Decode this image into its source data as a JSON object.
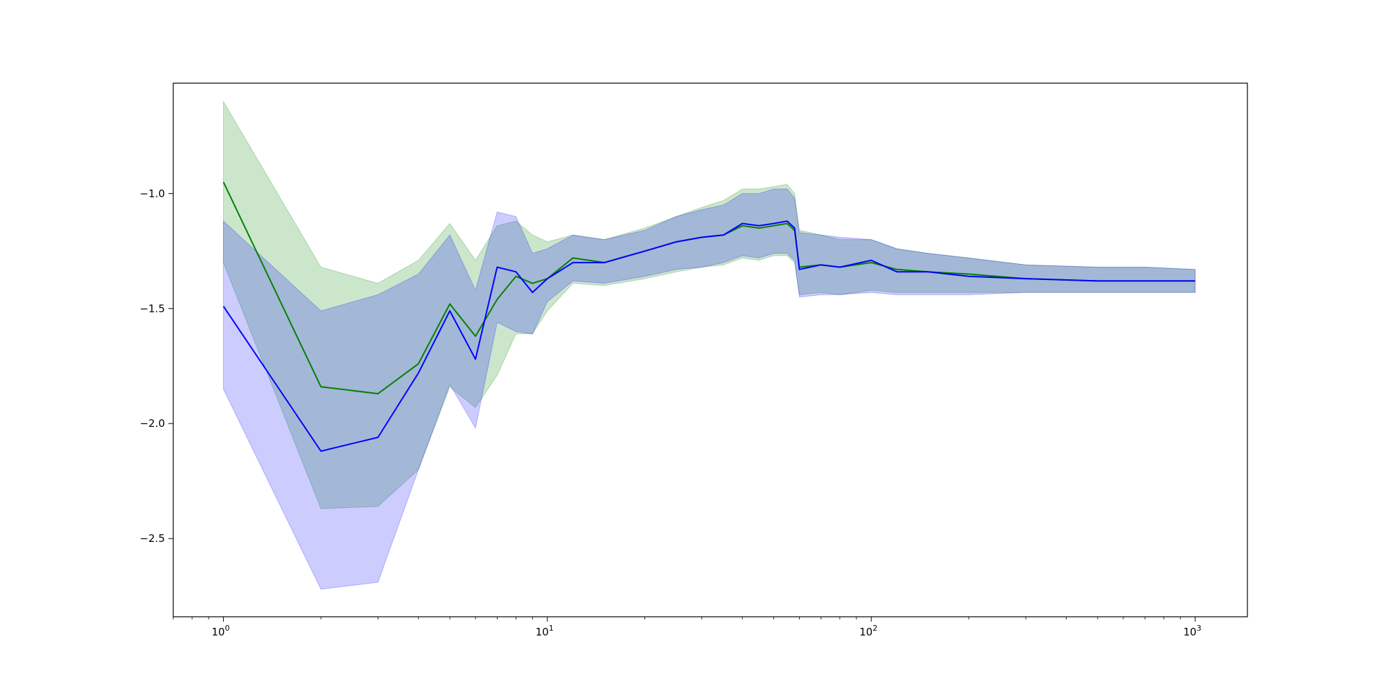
{
  "chart_data": {
    "type": "line",
    "title": "",
    "xlabel": "",
    "ylabel": "",
    "xscale": "log",
    "xlim": [
      0.7,
      1450
    ],
    "ylim": [
      -2.84,
      -0.52
    ],
    "grid": false,
    "legend": "none",
    "x_tick_labels": [
      {
        "value": 1,
        "base": "10",
        "exp": "0"
      },
      {
        "value": 10,
        "base": "10",
        "exp": "1"
      },
      {
        "value": 100,
        "base": "10",
        "exp": "2"
      },
      {
        "value": 1000,
        "base": "10",
        "exp": "3"
      }
    ],
    "y_ticks": [
      -1.0,
      -1.5,
      -2.0,
      -2.5
    ],
    "y_tick_labels": [
      "−1.0",
      "−1.5",
      "−2.0",
      "−2.5"
    ],
    "series": [
      {
        "color": "#008000",
        "band_color": "#008000",
        "band_opacity": 0.2,
        "x": [
          1,
          2,
          3,
          4,
          5,
          6,
          7,
          8,
          9,
          10,
          12,
          15,
          20,
          25,
          30,
          35,
          40,
          45,
          50,
          55,
          58,
          60,
          70,
          80,
          100,
          120,
          150,
          200,
          300,
          500,
          700,
          1000
        ],
        "y": [
          -0.95,
          -1.84,
          -1.87,
          -1.74,
          -1.48,
          -1.62,
          -1.46,
          -1.36,
          -1.39,
          -1.37,
          -1.28,
          -1.3,
          -1.25,
          -1.21,
          -1.19,
          -1.18,
          -1.14,
          -1.15,
          -1.14,
          -1.13,
          -1.16,
          -1.32,
          -1.31,
          -1.32,
          -1.3,
          -1.33,
          -1.34,
          -1.35,
          -1.37,
          -1.38,
          -1.38,
          -1.38
        ],
        "upper": [
          -0.6,
          -1.32,
          -1.39,
          -1.29,
          -1.13,
          -1.29,
          -1.14,
          -1.12,
          -1.18,
          -1.21,
          -1.18,
          -1.2,
          -1.15,
          -1.1,
          -1.06,
          -1.03,
          -0.98,
          -0.98,
          -0.97,
          -0.96,
          -1.0,
          -1.16,
          -1.18,
          -1.2,
          -1.2,
          -1.24,
          -1.26,
          -1.28,
          -1.31,
          -1.32,
          -1.32,
          -1.33
        ],
        "lower": [
          -1.3,
          -2.37,
          -2.36,
          -2.2,
          -1.84,
          -1.93,
          -1.79,
          -1.61,
          -1.61,
          -1.51,
          -1.39,
          -1.4,
          -1.37,
          -1.34,
          -1.32,
          -1.31,
          -1.28,
          -1.29,
          -1.27,
          -1.27,
          -1.3,
          -1.44,
          -1.43,
          -1.44,
          -1.42,
          -1.43,
          -1.43,
          -1.43,
          -1.43,
          -1.43,
          -1.43,
          -1.43
        ]
      },
      {
        "color": "#0000ff",
        "band_color": "#0000ff",
        "band_opacity": 0.2,
        "x": [
          1,
          2,
          3,
          4,
          5,
          6,
          7,
          8,
          9,
          10,
          12,
          15,
          20,
          25,
          30,
          35,
          40,
          45,
          50,
          55,
          58,
          60,
          70,
          80,
          100,
          120,
          150,
          200,
          300,
          500,
          700,
          1000
        ],
        "y": [
          -1.49,
          -2.12,
          -2.06,
          -1.78,
          -1.51,
          -1.72,
          -1.32,
          -1.34,
          -1.43,
          -1.37,
          -1.3,
          -1.3,
          -1.25,
          -1.21,
          -1.19,
          -1.18,
          -1.13,
          -1.14,
          -1.13,
          -1.12,
          -1.15,
          -1.33,
          -1.31,
          -1.32,
          -1.29,
          -1.34,
          -1.34,
          -1.36,
          -1.37,
          -1.38,
          -1.38,
          -1.38
        ],
        "upper": [
          -1.12,
          -1.51,
          -1.44,
          -1.35,
          -1.18,
          -1.42,
          -1.08,
          -1.1,
          -1.26,
          -1.24,
          -1.18,
          -1.2,
          -1.16,
          -1.1,
          -1.07,
          -1.05,
          -1.0,
          -1.0,
          -0.98,
          -0.98,
          -1.02,
          -1.17,
          -1.18,
          -1.19,
          -1.2,
          -1.24,
          -1.26,
          -1.28,
          -1.31,
          -1.32,
          -1.32,
          -1.33
        ],
        "lower": [
          -1.85,
          -2.72,
          -2.69,
          -2.2,
          -1.83,
          -2.02,
          -1.56,
          -1.6,
          -1.61,
          -1.47,
          -1.38,
          -1.39,
          -1.36,
          -1.33,
          -1.32,
          -1.3,
          -1.27,
          -1.28,
          -1.26,
          -1.26,
          -1.29,
          -1.45,
          -1.44,
          -1.44,
          -1.43,
          -1.44,
          -1.44,
          -1.44,
          -1.43,
          -1.43,
          -1.43,
          -1.43
        ]
      }
    ]
  }
}
